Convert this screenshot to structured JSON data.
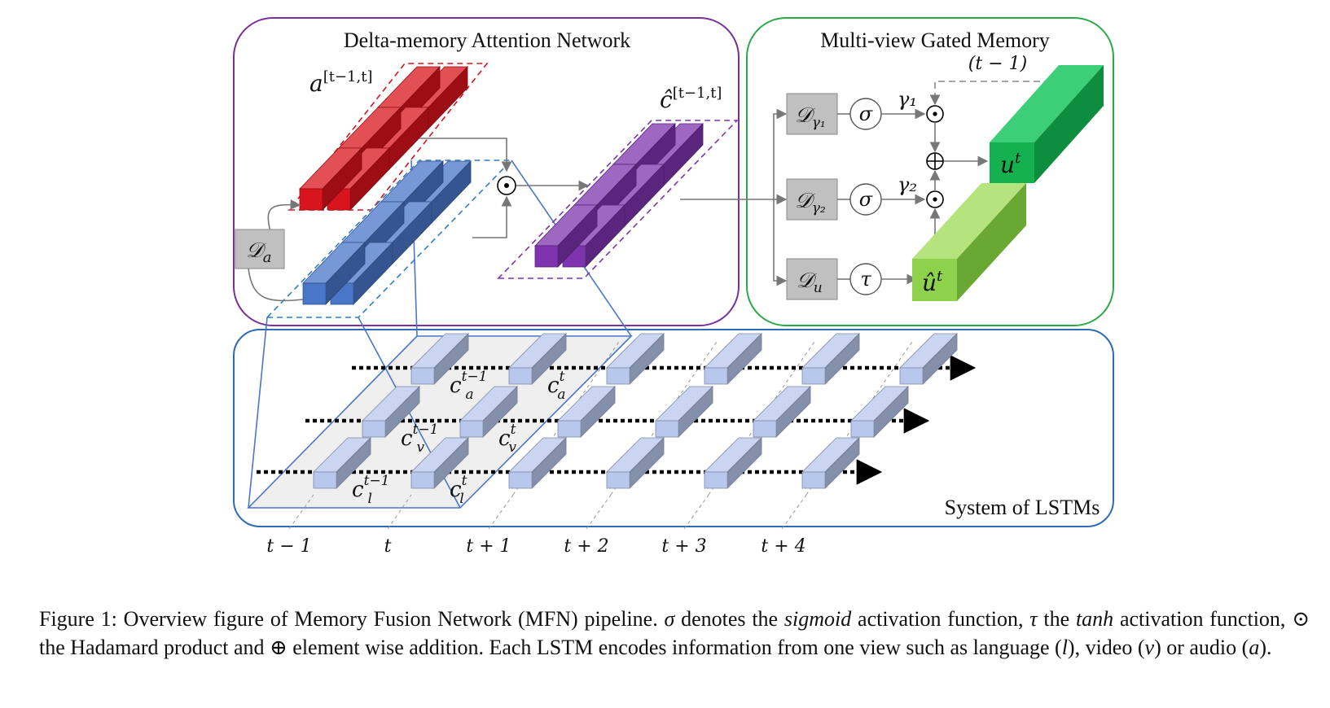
{
  "panels": {
    "dman_title": "Delta-memory Attention Network",
    "mgm_title": "Multi-view Gated Memory",
    "lstm_title": "System of LSTMs"
  },
  "labels": {
    "a_window_base": "a",
    "a_window_sup": "[t−1,t]",
    "c_hat_base": "ĉ",
    "c_hat_sup": "[t−1,t]",
    "d_a": "𝒟",
    "d_a_sub": "a",
    "d_gamma1": "𝒟",
    "d_gamma1_sub": "γ₁",
    "d_gamma2": "𝒟",
    "d_gamma2_sub": "γ₂",
    "d_u": "𝒟",
    "d_u_sub": "u",
    "sigma1": "σ",
    "sigma2": "σ",
    "tau": "τ",
    "gamma1": "γ₁",
    "gamma2": "γ₂",
    "t_minus_1": "(t − 1)",
    "hadamard": "⊙",
    "plus": "⊕",
    "u_t_base": "u",
    "u_t_sup": "t",
    "u_hat_base": "û",
    "u_hat_sup": "t"
  },
  "cell_labels": [
    {
      "base": "c",
      "sup": "t−1",
      "sub": "a"
    },
    {
      "base": "c",
      "sup": "t",
      "sub": "a"
    },
    {
      "base": "c",
      "sup": "t−1",
      "sub": "v"
    },
    {
      "base": "c",
      "sup": "t",
      "sub": "v"
    },
    {
      "base": "c",
      "sup": "t−1",
      "sub": "l"
    },
    {
      "base": "c",
      "sup": "t",
      "sub": "l"
    }
  ],
  "time_labels": [
    "t − 1",
    "t",
    "t + 1",
    "t + 2",
    "t + 3",
    "t + 4"
  ],
  "colors": {
    "red": "#d8141c",
    "blue": "#4a76c8",
    "purple": "#7d34ae",
    "green_dark": "#15b150",
    "green_light": "#8ed14a",
    "lstm_cell": "#b8c8ec",
    "dman_border": "#7a2f9a",
    "mgm_border": "#2aa84a",
    "lstm_border": "#2e6bb5",
    "gray_box": "#c0c0c0"
  },
  "caption": {
    "c1": "Figure 1:  Overview figure of Memory Fusion Network (MFN) pipeline. ",
    "c2": "σ",
    "c3": " denotes the ",
    "c4": "sigmoid",
    "c5": " activation function, ",
    "c6": "τ",
    "c7": " the ",
    "c8": "tanh",
    "c9": " activation function, ⊙ the Hadamard product and ⊕ element wise addition. Each LSTM encodes information from one view such as language (",
    "c10": "l",
    "c11": "), video (",
    "c12": "v",
    "c13": ") or audio (",
    "c14": "a",
    "c15": ")."
  }
}
